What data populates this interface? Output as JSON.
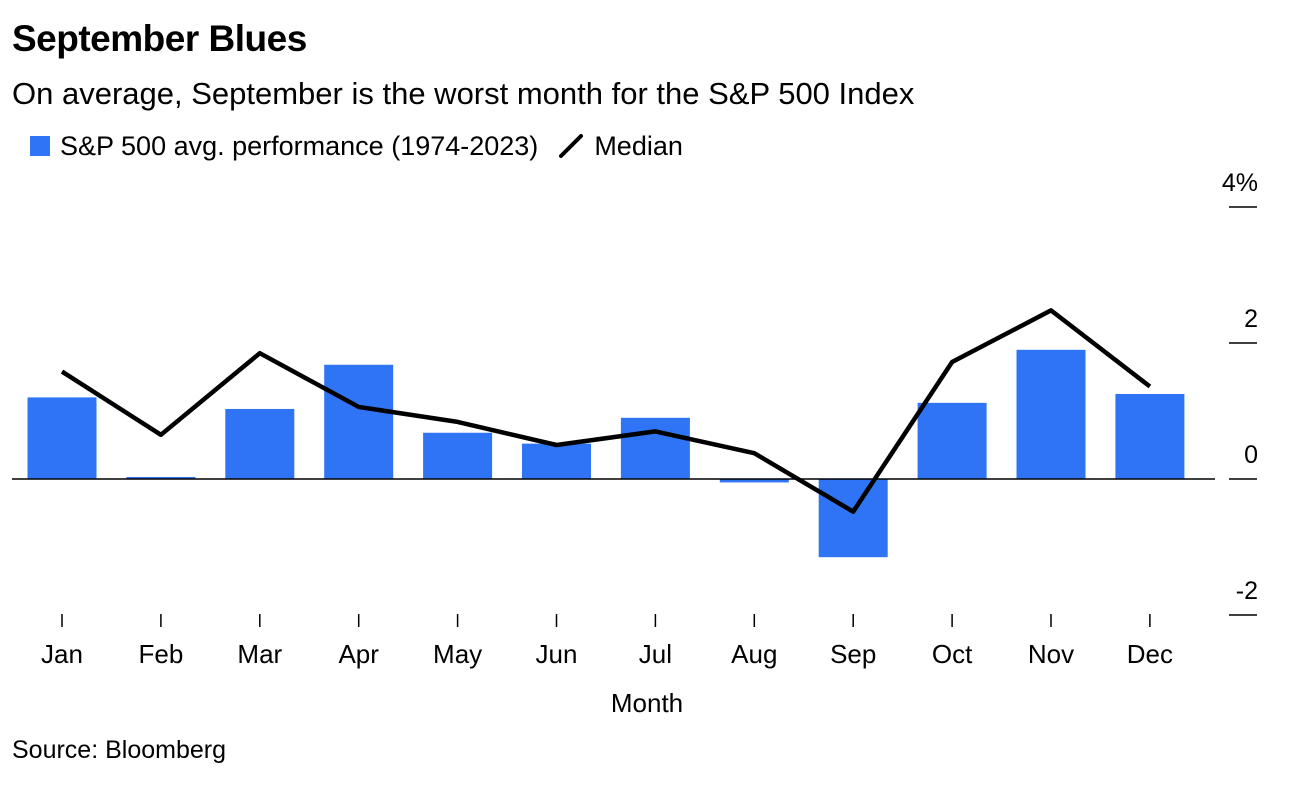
{
  "title": "September Blues",
  "subtitle": "On average, September is the worst month for the S&P 500 Index",
  "source": "Source: Bloomberg",
  "colors": {
    "bar": "#2f74f5",
    "line": "#000000",
    "axis": "#000000"
  },
  "chart_data": {
    "type": "bar",
    "categories": [
      "Jan",
      "Feb",
      "Mar",
      "Apr",
      "May",
      "Jun",
      "Jul",
      "Aug",
      "Sep",
      "Oct",
      "Nov",
      "Dec"
    ],
    "series": [
      {
        "name": "S&P 500 avg. performance (1974-2023)",
        "type": "bar",
        "values": [
          1.2,
          0.03,
          1.03,
          1.68,
          0.68,
          0.52,
          0.9,
          -0.05,
          -1.15,
          1.12,
          1.9,
          1.25
        ]
      },
      {
        "name": "Median",
        "type": "line",
        "values": [
          1.58,
          0.65,
          1.85,
          1.06,
          0.84,
          0.5,
          0.7,
          0.38,
          -0.48,
          1.72,
          2.48,
          1.36
        ]
      }
    ],
    "xlabel": "Month",
    "ylabel": "",
    "ylim": [
      -2,
      4
    ],
    "yticks": [
      {
        "value": 4,
        "label": "4%"
      },
      {
        "value": 2,
        "label": "2"
      },
      {
        "value": 0,
        "label": "0"
      },
      {
        "value": -2,
        "label": "-2"
      }
    ],
    "legend_position": "top-left",
    "grid": false
  }
}
